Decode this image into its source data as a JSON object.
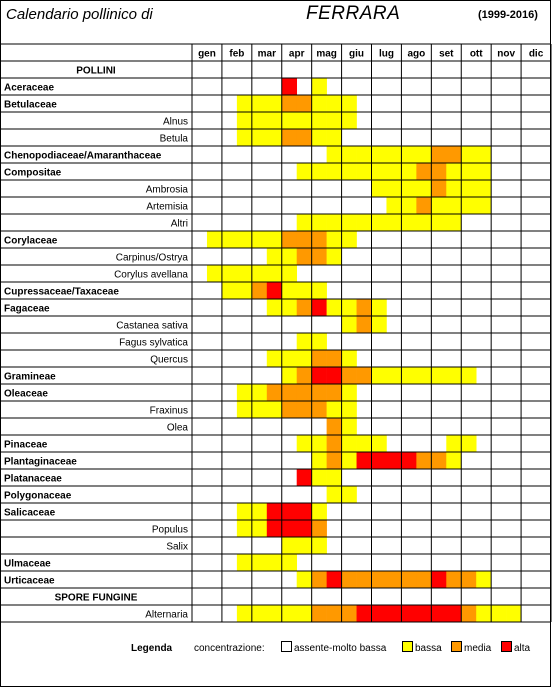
{
  "header": {
    "title": "Calendario pollinico di",
    "city": "FERRARA",
    "years": "(1999-2016)"
  },
  "chart_data": {
    "type": "heatmap",
    "months": [
      "gen",
      "feb",
      "mar",
      "apr",
      "mag",
      "giu",
      "lug",
      "ago",
      "set",
      "ott",
      "nov",
      "dic"
    ],
    "colors": {
      "0": "#ffffff",
      "1": "#ffff00",
      "2": "#ff9900",
      "3": "#ff0000"
    },
    "levels": [
      "assente-molto bassa",
      "bassa",
      "media",
      "alta"
    ],
    "rows": [
      {
        "label": "POLLINI",
        "kind": "section"
      },
      {
        "label": "Aceraceae",
        "kind": "family",
        "values": [
          0,
          0,
          0,
          0,
          0,
          0,
          3,
          0,
          1,
          0,
          0,
          0,
          0,
          0,
          0,
          0,
          0,
          0,
          0,
          0,
          0,
          0,
          0,
          0
        ]
      },
      {
        "label": "Betulaceae",
        "kind": "family",
        "values": [
          0,
          0,
          0,
          1,
          1,
          1,
          2,
          2,
          1,
          1,
          1,
          0,
          0,
          0,
          0,
          0,
          0,
          0,
          0,
          0,
          0,
          0,
          0,
          0
        ]
      },
      {
        "label": "Alnus",
        "kind": "genus",
        "values": [
          0,
          0,
          0,
          1,
          1,
          1,
          1,
          1,
          1,
          1,
          1,
          0,
          0,
          0,
          0,
          0,
          0,
          0,
          0,
          0,
          0,
          0,
          0,
          0
        ]
      },
      {
        "label": "Betula",
        "kind": "genus",
        "values": [
          0,
          0,
          0,
          1,
          1,
          1,
          2,
          2,
          1,
          1,
          0,
          0,
          0,
          0,
          0,
          0,
          0,
          0,
          0,
          0,
          0,
          0,
          0,
          0
        ]
      },
      {
        "label": "Chenopodiaceae/Amaranthaceae",
        "kind": "family",
        "values": [
          0,
          0,
          0,
          0,
          0,
          0,
          0,
          0,
          0,
          1,
          1,
          1,
          1,
          1,
          1,
          1,
          2,
          2,
          1,
          1,
          0,
          0,
          0,
          0
        ]
      },
      {
        "label": "Compositae",
        "kind": "family",
        "values": [
          0,
          0,
          0,
          0,
          0,
          0,
          0,
          1,
          1,
          1,
          1,
          1,
          1,
          1,
          1,
          2,
          2,
          1,
          1,
          1,
          0,
          0,
          0,
          0
        ]
      },
      {
        "label": "Ambrosia",
        "kind": "genus",
        "values": [
          0,
          0,
          0,
          0,
          0,
          0,
          0,
          0,
          0,
          0,
          0,
          0,
          1,
          1,
          1,
          1,
          2,
          1,
          1,
          1,
          0,
          0,
          0,
          0
        ]
      },
      {
        "label": "Artemisia",
        "kind": "genus",
        "values": [
          0,
          0,
          0,
          0,
          0,
          0,
          0,
          0,
          0,
          0,
          0,
          0,
          0,
          1,
          1,
          2,
          1,
          1,
          1,
          1,
          0,
          0,
          0,
          0
        ]
      },
      {
        "label": "Altri",
        "kind": "genus",
        "values": [
          0,
          0,
          0,
          0,
          0,
          0,
          0,
          1,
          1,
          1,
          1,
          1,
          1,
          1,
          1,
          1,
          1,
          1,
          0,
          0,
          0,
          0,
          0,
          0
        ]
      },
      {
        "label": "Corylaceae",
        "kind": "family",
        "values": [
          0,
          1,
          1,
          1,
          1,
          1,
          2,
          2,
          2,
          1,
          1,
          0,
          0,
          0,
          0,
          0,
          0,
          0,
          0,
          0,
          0,
          0,
          0,
          0
        ]
      },
      {
        "label": "Carpinus/Ostrya",
        "kind": "genus",
        "values": [
          0,
          0,
          0,
          0,
          0,
          1,
          1,
          2,
          2,
          1,
          0,
          0,
          0,
          0,
          0,
          0,
          0,
          0,
          0,
          0,
          0,
          0,
          0,
          0
        ]
      },
      {
        "label": "Corylus avellana",
        "kind": "genus",
        "values": [
          0,
          1,
          1,
          1,
          1,
          1,
          1,
          0,
          0,
          0,
          0,
          0,
          0,
          0,
          0,
          0,
          0,
          0,
          0,
          0,
          0,
          0,
          0,
          0
        ]
      },
      {
        "label": "Cupressaceae/Taxaceae",
        "kind": "family",
        "values": [
          0,
          0,
          1,
          1,
          2,
          3,
          1,
          1,
          1,
          0,
          0,
          0,
          0,
          0,
          0,
          0,
          0,
          0,
          0,
          0,
          0,
          0,
          0,
          0
        ]
      },
      {
        "label": "Fagaceae",
        "kind": "family",
        "values": [
          0,
          0,
          0,
          0,
          0,
          1,
          1,
          2,
          3,
          1,
          1,
          2,
          1,
          0,
          0,
          0,
          0,
          0,
          0,
          0,
          0,
          0,
          0,
          0
        ]
      },
      {
        "label": "Castanea sativa",
        "kind": "genus",
        "values": [
          0,
          0,
          0,
          0,
          0,
          0,
          0,
          0,
          0,
          0,
          1,
          2,
          1,
          0,
          0,
          0,
          0,
          0,
          0,
          0,
          0,
          0,
          0,
          0
        ]
      },
      {
        "label": "Fagus sylvatica",
        "kind": "genus",
        "values": [
          0,
          0,
          0,
          0,
          0,
          0,
          0,
          1,
          1,
          0,
          0,
          0,
          0,
          0,
          0,
          0,
          0,
          0,
          0,
          0,
          0,
          0,
          0,
          0
        ]
      },
      {
        "label": "Quercus",
        "kind": "genus",
        "values": [
          0,
          0,
          0,
          0,
          0,
          1,
          1,
          1,
          2,
          2,
          1,
          0,
          0,
          0,
          0,
          0,
          0,
          0,
          0,
          0,
          0,
          0,
          0,
          0
        ]
      },
      {
        "label": "Gramineae",
        "kind": "family",
        "values": [
          0,
          0,
          0,
          0,
          0,
          0,
          1,
          2,
          3,
          3,
          2,
          2,
          1,
          1,
          1,
          1,
          1,
          1,
          1,
          0,
          0,
          0,
          0,
          0
        ]
      },
      {
        "label": "Oleaceae",
        "kind": "family",
        "values": [
          0,
          0,
          0,
          1,
          1,
          2,
          2,
          2,
          2,
          2,
          1,
          0,
          0,
          0,
          0,
          0,
          0,
          0,
          0,
          0,
          0,
          0,
          0,
          0
        ]
      },
      {
        "label": "Fraxinus",
        "kind": "genus",
        "values": [
          0,
          0,
          0,
          1,
          1,
          1,
          2,
          2,
          2,
          1,
          1,
          0,
          0,
          0,
          0,
          0,
          0,
          0,
          0,
          0,
          0,
          0,
          0,
          0
        ]
      },
      {
        "label": "Olea",
        "kind": "genus",
        "values": [
          0,
          0,
          0,
          0,
          0,
          0,
          0,
          0,
          0,
          2,
          1,
          0,
          0,
          0,
          0,
          0,
          0,
          0,
          0,
          0,
          0,
          0,
          0,
          0
        ]
      },
      {
        "label": "Pinaceae",
        "kind": "family",
        "values": [
          0,
          0,
          0,
          0,
          0,
          0,
          0,
          1,
          1,
          2,
          1,
          1,
          1,
          0,
          0,
          0,
          0,
          1,
          1,
          0,
          0,
          0,
          0,
          0
        ]
      },
      {
        "label": "Plantaginaceae",
        "kind": "family",
        "values": [
          0,
          0,
          0,
          0,
          0,
          0,
          0,
          0,
          1,
          2,
          1,
          3,
          3,
          3,
          3,
          2,
          2,
          1,
          0,
          0,
          0,
          0,
          0,
          0
        ]
      },
      {
        "label": "Platanaceae",
        "kind": "family",
        "values": [
          0,
          0,
          0,
          0,
          0,
          0,
          0,
          3,
          1,
          1,
          0,
          0,
          0,
          0,
          0,
          0,
          0,
          0,
          0,
          0,
          0,
          0,
          0,
          0
        ]
      },
      {
        "label": "Polygonaceae",
        "kind": "family",
        "values": [
          0,
          0,
          0,
          0,
          0,
          0,
          0,
          0,
          0,
          1,
          1,
          0,
          0,
          0,
          0,
          0,
          0,
          0,
          0,
          0,
          0,
          0,
          0,
          0
        ]
      },
      {
        "label": "Salicaceae",
        "kind": "family",
        "values": [
          0,
          0,
          0,
          1,
          1,
          3,
          3,
          3,
          1,
          0,
          0,
          0,
          0,
          0,
          0,
          0,
          0,
          0,
          0,
          0,
          0,
          0,
          0,
          0
        ]
      },
      {
        "label": "Populus",
        "kind": "genus",
        "values": [
          0,
          0,
          0,
          1,
          1,
          3,
          3,
          3,
          2,
          0,
          0,
          0,
          0,
          0,
          0,
          0,
          0,
          0,
          0,
          0,
          0,
          0,
          0,
          0
        ]
      },
      {
        "label": "Salix",
        "kind": "genus",
        "values": [
          0,
          0,
          0,
          0,
          0,
          0,
          1,
          1,
          1,
          0,
          0,
          0,
          0,
          0,
          0,
          0,
          0,
          0,
          0,
          0,
          0,
          0,
          0,
          0
        ]
      },
      {
        "label": "Ulmaceae",
        "kind": "family",
        "values": [
          0,
          0,
          0,
          1,
          1,
          1,
          1,
          0,
          0,
          0,
          0,
          0,
          0,
          0,
          0,
          0,
          0,
          0,
          0,
          0,
          0,
          0,
          0,
          0
        ]
      },
      {
        "label": "Urticaceae",
        "kind": "family",
        "values": [
          0,
          0,
          0,
          0,
          0,
          0,
          0,
          1,
          2,
          3,
          2,
          2,
          2,
          2,
          2,
          2,
          3,
          2,
          2,
          1,
          0,
          0,
          0,
          0
        ]
      },
      {
        "label": "SPORE FUNGINE",
        "kind": "section"
      },
      {
        "label": "Alternaria",
        "kind": "genus",
        "values": [
          0,
          0,
          0,
          1,
          1,
          1,
          1,
          1,
          2,
          2,
          2,
          3,
          3,
          3,
          3,
          3,
          3,
          3,
          2,
          1,
          1,
          1,
          0,
          0
        ]
      }
    ]
  },
  "legend": {
    "title": "Legenda",
    "label": "concentrazione:",
    "items": [
      "assente-molto bassa",
      "bassa",
      "media",
      "alta"
    ]
  }
}
